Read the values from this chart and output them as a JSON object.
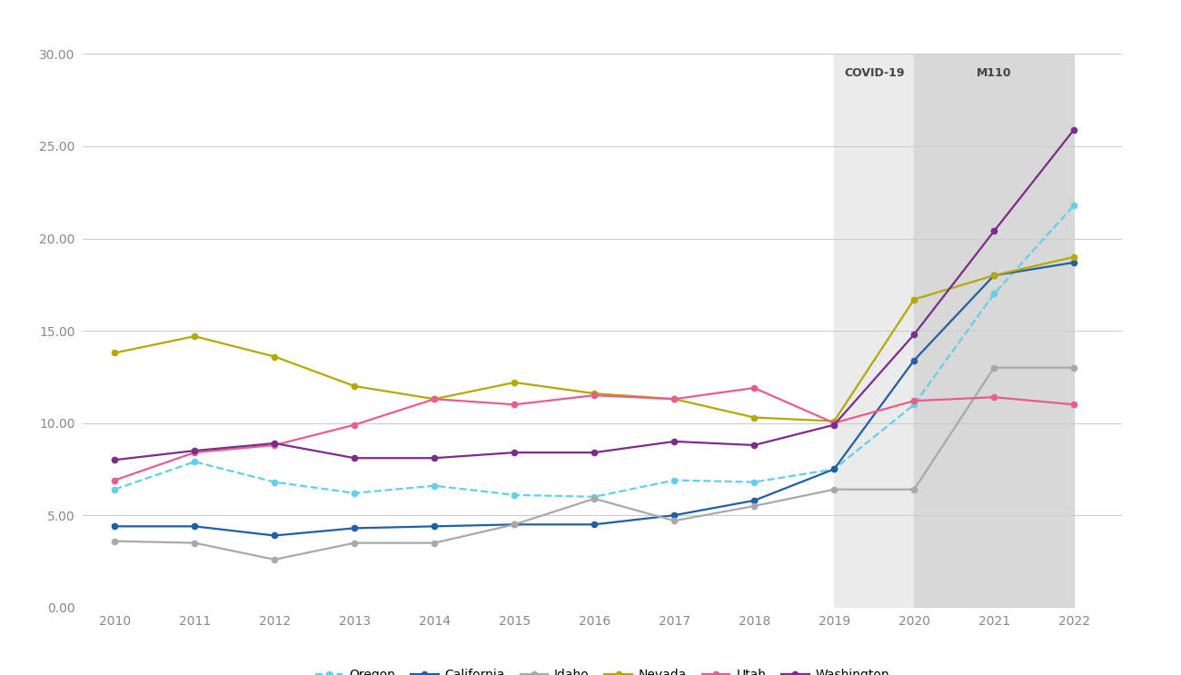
{
  "years": [
    2010,
    2011,
    2012,
    2013,
    2014,
    2015,
    2016,
    2017,
    2018,
    2019,
    2020,
    2021,
    2022
  ],
  "oregon": [
    6.4,
    7.9,
    6.8,
    6.2,
    6.6,
    6.1,
    6.0,
    6.9,
    6.8,
    7.5,
    11.0,
    17.0,
    21.8
  ],
  "california": [
    4.4,
    4.4,
    3.9,
    4.3,
    4.4,
    4.5,
    4.5,
    5.0,
    5.8,
    7.5,
    13.4,
    18.0,
    18.7
  ],
  "idaho": [
    3.6,
    3.5,
    2.6,
    3.5,
    3.5,
    4.5,
    5.9,
    4.7,
    5.5,
    6.4,
    6.4,
    13.0,
    13.0
  ],
  "nevada": [
    13.8,
    14.7,
    13.6,
    12.0,
    11.3,
    12.2,
    11.6,
    11.3,
    10.3,
    10.1,
    16.7,
    18.0,
    19.0
  ],
  "utah": [
    6.9,
    8.4,
    8.8,
    9.9,
    11.3,
    11.0,
    11.5,
    11.3,
    11.9,
    10.0,
    11.2,
    11.4,
    11.0
  ],
  "washington": [
    8.0,
    8.5,
    8.9,
    8.1,
    8.1,
    8.4,
    8.4,
    9.0,
    8.8,
    9.9,
    14.8,
    20.4,
    25.9
  ],
  "colors": {
    "oregon": "#62d0e8",
    "california": "#1f5fa6",
    "idaho": "#a9a9a9",
    "nevada": "#b5a800",
    "utah": "#e85d8a",
    "washington": "#7b2d8b"
  },
  "bg_covid": "#ebebeb",
  "bg_m110": "#d8d8d8",
  "ylim": [
    0.0,
    30.0
  ],
  "yticks": [
    0.0,
    5.0,
    10.0,
    15.0,
    20.0,
    25.0,
    30.0
  ],
  "background_color": "#ffffff",
  "outer_bg": "#ffffff",
  "grid_color": "#cccccc",
  "tick_color": "#888888",
  "label_fontsize": 10,
  "annotation_fontsize": 9
}
